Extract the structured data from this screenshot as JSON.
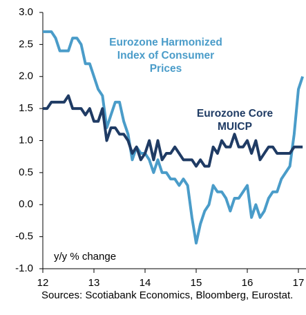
{
  "chart_data": {
    "type": "line",
    "x": [
      12.0,
      12.083,
      12.167,
      12.25,
      12.333,
      12.417,
      12.5,
      12.583,
      12.667,
      12.75,
      12.833,
      12.917,
      13.0,
      13.083,
      13.167,
      13.25,
      13.333,
      13.417,
      13.5,
      13.583,
      13.667,
      13.75,
      13.833,
      13.917,
      14.0,
      14.083,
      14.167,
      14.25,
      14.333,
      14.417,
      14.5,
      14.583,
      14.667,
      14.75,
      14.833,
      14.917,
      15.0,
      15.083,
      15.167,
      15.25,
      15.333,
      15.417,
      15.5,
      15.583,
      15.667,
      15.75,
      15.833,
      15.917,
      16.0,
      16.083,
      16.167,
      16.25,
      16.333,
      16.417,
      16.5,
      16.583,
      16.667,
      16.75,
      16.833,
      16.917,
      17.0,
      17.083
    ],
    "series": [
      {
        "name": "Eurozone Harmonized Index of Consumer Prices",
        "color": "#4a9cc9",
        "values": [
          2.7,
          2.7,
          2.7,
          2.6,
          2.4,
          2.4,
          2.4,
          2.6,
          2.6,
          2.5,
          2.2,
          2.2,
          2.0,
          1.8,
          1.7,
          1.2,
          1.4,
          1.6,
          1.6,
          1.3,
          1.1,
          0.7,
          0.9,
          0.8,
          0.8,
          0.7,
          0.5,
          0.7,
          0.5,
          0.5,
          0.4,
          0.4,
          0.3,
          0.4,
          0.3,
          -0.2,
          -0.6,
          -0.3,
          -0.1,
          0.0,
          0.3,
          0.2,
          0.2,
          0.1,
          -0.1,
          0.1,
          0.1,
          0.2,
          0.3,
          -0.2,
          0.0,
          -0.2,
          -0.1,
          0.1,
          0.2,
          0.2,
          0.4,
          0.5,
          0.6,
          1.1,
          1.8,
          2.0
        ]
      },
      {
        "name": "Eurozone Core MUICP",
        "color": "#1f3b64",
        "values": [
          1.5,
          1.5,
          1.6,
          1.6,
          1.6,
          1.6,
          1.7,
          1.5,
          1.5,
          1.5,
          1.4,
          1.5,
          1.3,
          1.3,
          1.5,
          1.0,
          1.2,
          1.2,
          1.1,
          1.1,
          1.0,
          0.8,
          0.9,
          0.7,
          0.8,
          1.0,
          0.7,
          1.0,
          0.7,
          0.8,
          0.8,
          0.9,
          0.8,
          0.7,
          0.7,
          0.7,
          0.6,
          0.7,
          0.6,
          0.6,
          0.9,
          0.8,
          1.0,
          0.9,
          0.9,
          1.1,
          0.9,
          0.9,
          1.0,
          0.8,
          1.0,
          0.7,
          0.8,
          0.9,
          0.9,
          0.8,
          0.8,
          0.8,
          0.8,
          0.9,
          0.9,
          0.9
        ]
      }
    ],
    "xlim": [
      12,
      17.15
    ],
    "xticks": [
      12,
      13,
      14,
      15,
      16,
      17
    ],
    "ylim": [
      -1,
      3
    ],
    "yticks": [
      {
        "value": -1,
        "label": "-1.0"
      },
      -0.5,
      {
        "value": 0,
        "label": "0.0"
      },
      0.5,
      {
        "value": 1,
        "label": "1.0"
      },
      1.5,
      {
        "value": 2,
        "label": "2.0"
      },
      2.5,
      {
        "value": 3,
        "label": "3.0"
      }
    ],
    "ylabel": "y/y % change",
    "source": "Sources: Scotiabank Economics, Bloomberg, Eurostat.",
    "grid": false
  }
}
